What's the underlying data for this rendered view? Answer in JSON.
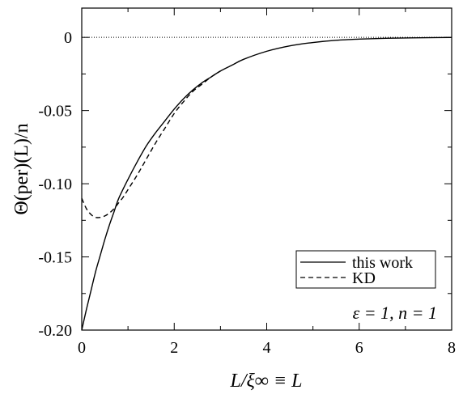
{
  "chart_data": {
    "type": "line",
    "xlabel": "L/ξ∞ ≡ L",
    "ylabel": "Θ(per)(L)/n",
    "xlim": [
      0,
      8
    ],
    "ylim": [
      -0.2,
      0.02
    ],
    "x_ticks": [
      "0",
      "2",
      "4",
      "6",
      "8"
    ],
    "y_ticks": [
      "0",
      "-0.05",
      "-0.10",
      "-0.15",
      "-0.20"
    ],
    "reference_line": {
      "y": 0,
      "style": "dotted"
    },
    "annotation": "ε = 1, n = 1",
    "legend": {
      "position": "bottom-right",
      "entries": [
        "this work",
        "KD"
      ]
    },
    "series": [
      {
        "name": "this work",
        "style": "solid",
        "color": "#000000",
        "x": [
          0,
          0.1,
          0.2,
          0.3,
          0.4,
          0.5,
          0.6,
          0.7,
          0.8,
          1.0,
          1.2,
          1.4,
          1.6,
          1.8,
          2.0,
          2.2,
          2.4,
          2.6,
          2.8,
          3.0,
          3.25,
          3.5,
          4.0,
          4.5,
          5.0,
          5.5,
          6.0,
          6.5,
          7.0,
          7.5,
          8.0
        ],
        "y": [
          -0.2,
          -0.186,
          -0.173,
          -0.16,
          -0.149,
          -0.138,
          -0.128,
          -0.119,
          -0.11,
          -0.097,
          -0.085,
          -0.074,
          -0.065,
          -0.057,
          -0.049,
          -0.042,
          -0.036,
          -0.031,
          -0.027,
          -0.023,
          -0.019,
          -0.015,
          -0.0095,
          -0.0058,
          -0.0035,
          -0.002,
          -0.0012,
          -0.0007,
          -0.0004,
          -0.0002,
          -0.0001
        ]
      },
      {
        "name": "KD",
        "style": "dashed",
        "color": "#000000",
        "x": [
          0,
          0.1,
          0.2,
          0.3,
          0.4,
          0.5,
          0.6,
          0.7,
          0.8,
          0.9,
          1.0,
          1.2,
          1.4,
          1.6,
          1.8,
          2.0,
          2.2,
          2.4,
          2.6,
          2.8,
          3.0
        ],
        "y": [
          -0.11,
          -0.117,
          -0.121,
          -0.123,
          -0.123,
          -0.122,
          -0.12,
          -0.117,
          -0.113,
          -0.109,
          -0.104,
          -0.094,
          -0.083,
          -0.072,
          -0.062,
          -0.052,
          -0.044,
          -0.037,
          -0.032,
          -0.027,
          -0.023
        ]
      }
    ]
  }
}
